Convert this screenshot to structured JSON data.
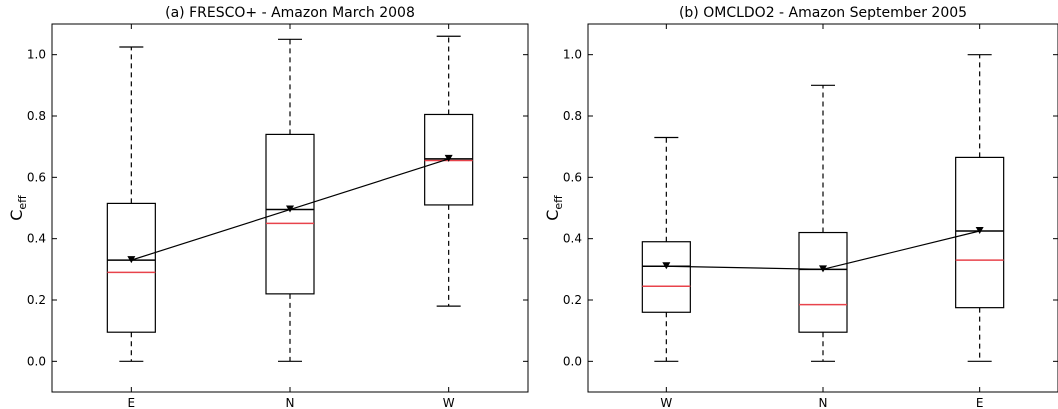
{
  "chart_data": [
    {
      "type": "box",
      "panel": "(a)",
      "title": "(a)   FRESCO+ - Amazon March 2008",
      "ylabel": "C",
      "ylabel_sub": "eff",
      "ylim": [
        -0.1,
        1.1
      ],
      "yticks": [
        0.0,
        0.2,
        0.4,
        0.6,
        0.8,
        1.0
      ],
      "ytick_labels": [
        "0.0",
        "0.2",
        "0.4",
        "0.6",
        "0.8",
        "1.0"
      ],
      "categories": [
        "E",
        "N",
        "W"
      ],
      "boxes": [
        {
          "whisker_low": 0.0,
          "q1": 0.095,
          "median": 0.33,
          "q3": 0.515,
          "whisker_high": 1.025,
          "red_line": 0.29,
          "mean": 0.33
        },
        {
          "whisker_low": 0.0,
          "q1": 0.22,
          "median": 0.495,
          "q3": 0.74,
          "whisker_high": 1.05,
          "red_line": 0.45,
          "mean": 0.495
        },
        {
          "whisker_low": 0.18,
          "q1": 0.51,
          "median": 0.66,
          "q3": 0.805,
          "whisker_high": 1.06,
          "red_line": 0.655,
          "mean": 0.66
        }
      ],
      "colors": {
        "median": "#000000",
        "red_line": "#e8434b",
        "box": "#000000"
      }
    },
    {
      "type": "box",
      "panel": "(b)",
      "title": "(b)     OMCLDO2 - Amazon September 2005",
      "ylabel": "C",
      "ylabel_sub": "eff",
      "ylim": [
        -0.1,
        1.1
      ],
      "yticks": [
        0.0,
        0.2,
        0.4,
        0.6,
        0.8,
        1.0
      ],
      "ytick_labels": [
        "0.0",
        "0.2",
        "0.4",
        "0.6",
        "0.8",
        "1.0"
      ],
      "categories": [
        "W",
        "N",
        "E"
      ],
      "boxes": [
        {
          "whisker_low": 0.0,
          "q1": 0.16,
          "median": 0.31,
          "q3": 0.39,
          "whisker_high": 0.73,
          "red_line": 0.245,
          "mean": 0.31
        },
        {
          "whisker_low": 0.0,
          "q1": 0.095,
          "median": 0.3,
          "q3": 0.42,
          "whisker_high": 0.9,
          "red_line": 0.185,
          "mean": 0.3
        },
        {
          "whisker_low": 0.0,
          "q1": 0.175,
          "median": 0.425,
          "q3": 0.665,
          "whisker_high": 1.0,
          "red_line": 0.33,
          "mean": 0.425
        }
      ],
      "colors": {
        "median": "#000000",
        "red_line": "#e8434b",
        "box": "#000000"
      }
    }
  ]
}
